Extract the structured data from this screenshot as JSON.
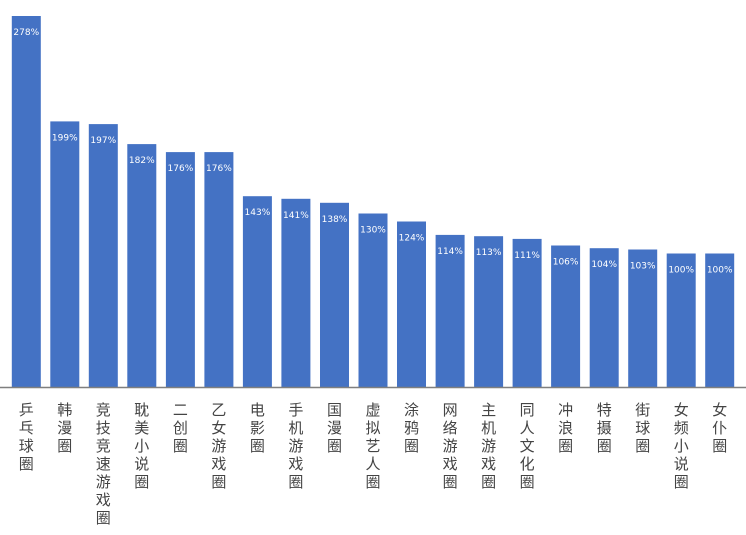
{
  "chart_data": {
    "type": "bar",
    "categories": [
      "乒乓球圈",
      "韩漫圈",
      "竞技竞速游戏圈",
      "耽美小说圈",
      "二创圈",
      "乙女游戏圈",
      "电影圈",
      "手机游戏圈",
      "国漫圈",
      "虚拟艺人圈",
      "涂鸦圈",
      "网络游戏圈",
      "主机游戏圈",
      "同人文化圈",
      "冲浪圈",
      "特摄圈",
      "街球圈",
      "女频小说圈",
      "女仆圈"
    ],
    "values": [
      278,
      199,
      197,
      182,
      176,
      176,
      143,
      141,
      138,
      130,
      124,
      114,
      113,
      111,
      106,
      104,
      103,
      100,
      100
    ],
    "data_labels": [
      "278%",
      "199%",
      "197%",
      "182%",
      "176%",
      "176%",
      "143%",
      "141%",
      "138%",
      "130%",
      "124%",
      "114%",
      "113%",
      "111%",
      "106%",
      "104%",
      "103%",
      "100%",
      "100%"
    ],
    "unit": "%",
    "title": "",
    "xlabel": "",
    "ylabel": "",
    "ylim": [
      0,
      278
    ],
    "grid": false,
    "legend": "none",
    "colors": {
      "bar": "#4472C4",
      "axis": "#7F7F7F",
      "label_text": "#FFFFFF",
      "category_text": "#444444"
    }
  }
}
